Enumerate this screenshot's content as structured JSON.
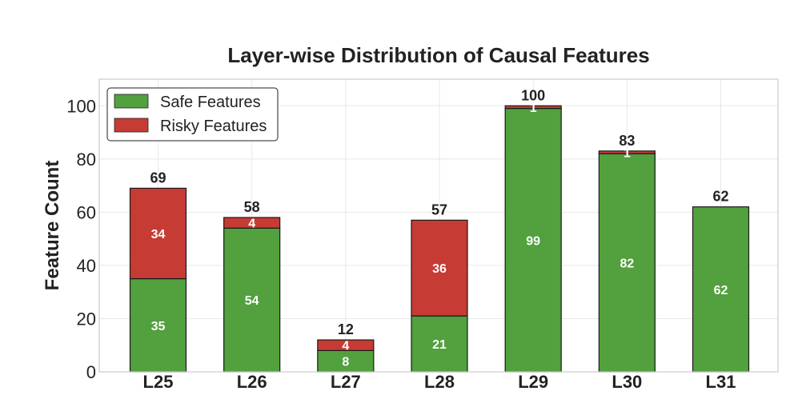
{
  "chart_data": {
    "type": "bar",
    "stacked": true,
    "title": "Layer-wise Distribution of Causal Features",
    "xlabel": "",
    "ylabel": "Feature Count",
    "categories": [
      "L25",
      "L26",
      "L27",
      "L28",
      "L29",
      "L30",
      "L31"
    ],
    "series": [
      {
        "name": "Safe Features",
        "values": [
          35,
          54,
          8,
          21,
          99,
          82,
          62
        ],
        "color": "#52a03e"
      },
      {
        "name": "Risky Features",
        "values": [
          34,
          4,
          4,
          36,
          1,
          1,
          0
        ],
        "color": "#c63b34"
      }
    ],
    "totals": [
      69,
      58,
      12,
      57,
      100,
      83,
      62
    ],
    "ylim": [
      0,
      110
    ],
    "yticks": [
      0,
      20,
      40,
      60,
      80,
      100
    ],
    "grid": true,
    "legend_position": "top-left"
  }
}
